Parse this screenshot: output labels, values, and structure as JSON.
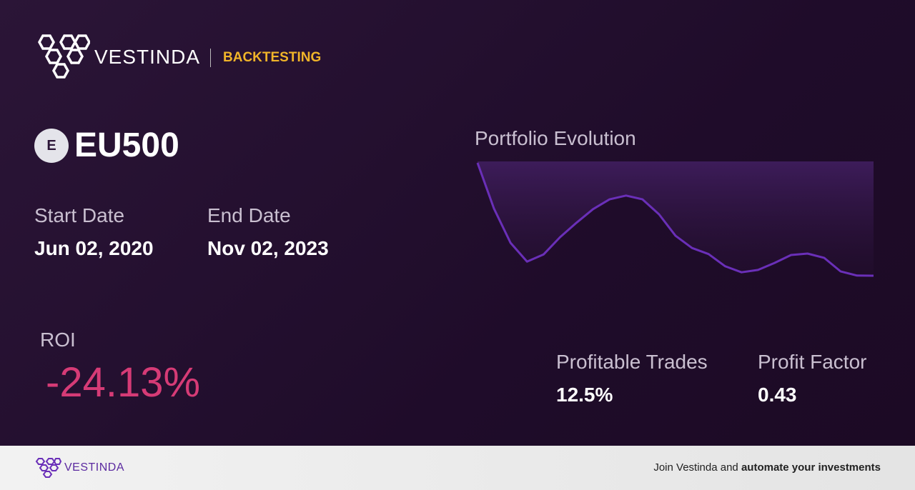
{
  "header": {
    "brand": "VESTINDA",
    "section": "BACKTESTING"
  },
  "asset": {
    "icon_letter": "E",
    "symbol": "EU500"
  },
  "dates": {
    "start_label": "Start Date",
    "start_value": "Jun 02, 2020",
    "end_label": "End Date",
    "end_value": "Nov 02, 2023"
  },
  "chart_data": {
    "type": "line",
    "title": "Portfolio Evolution",
    "color": "#6a2fb8",
    "values": [
      100,
      90.2,
      82.9,
      78.9,
      80.4,
      84.1,
      87.2,
      90.1,
      92.2,
      93.0,
      92.2,
      89.0,
      84.4,
      81.8,
      80.5,
      77.9,
      76.6,
      77.1,
      78.6,
      80.3,
      80.6,
      79.7,
      76.8,
      75.9,
      75.87
    ]
  },
  "stats": {
    "roi_label": "ROI",
    "roi_value": "-24.13%",
    "profitable_label": "Profitable Trades",
    "profitable_value": "12.5%",
    "factor_label": "Profit Factor",
    "factor_value": "0.43"
  },
  "footer": {
    "brand": "VESTINDA",
    "cta_plain": "Join Vestinda and",
    "cta_bold": "automate your investments"
  }
}
